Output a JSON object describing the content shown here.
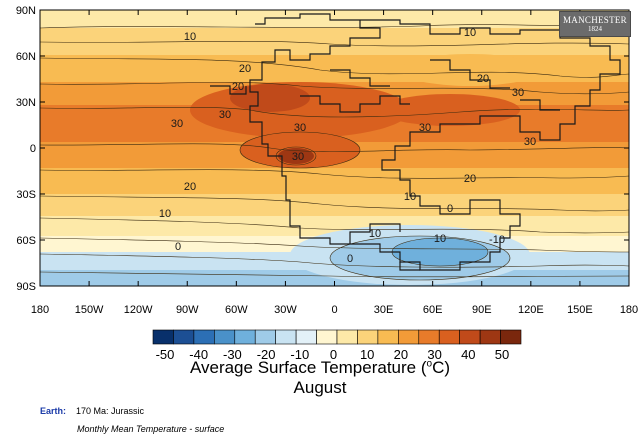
{
  "map": {
    "y_ticks": [
      "90N",
      "60N",
      "30N",
      "0",
      "30S",
      "60S",
      "90S"
    ],
    "x_ticks": [
      "180",
      "150W",
      "120W",
      "90W",
      "60W",
      "30W",
      "0",
      "30E",
      "60E",
      "90E",
      "120E",
      "150E",
      "180"
    ],
    "contour_labels": [
      "10",
      "20",
      "30",
      "30",
      "30",
      "20",
      "30",
      "30",
      "10",
      "20",
      "30",
      "30",
      "20",
      "10",
      "20",
      "10",
      "10",
      "0",
      "10",
      "0",
      "-10",
      "0"
    ]
  },
  "logo": {
    "line1": "MANCHESTER",
    "line2": "1824"
  },
  "colorbar": {
    "labels": [
      "-50",
      "-40",
      "-30",
      "-20",
      "-10",
      "0",
      "10",
      "20",
      "30",
      "40",
      "50"
    ],
    "colors": [
      "#08306b",
      "#1c4f94",
      "#2c6fb5",
      "#4a91c9",
      "#6fb0dc",
      "#9fcbe8",
      "#c9e3f2",
      "#e3f1f8",
      "#fff6d1",
      "#fde9a8",
      "#fbd37a",
      "#f8bb52",
      "#f29b38",
      "#e87b2a",
      "#d9601f",
      "#c04a1a",
      "#9e3713",
      "#7a270d"
    ],
    "title": "Average Surface Temperature (",
    "title_unit_sup": "o",
    "title_unit_tail": "C)",
    "month": "August"
  },
  "footer": {
    "earth_label": "Earth:",
    "earth_value": "170 Ma: Jurassic",
    "subtitle": "Monthly Mean Temperature - surface"
  }
}
